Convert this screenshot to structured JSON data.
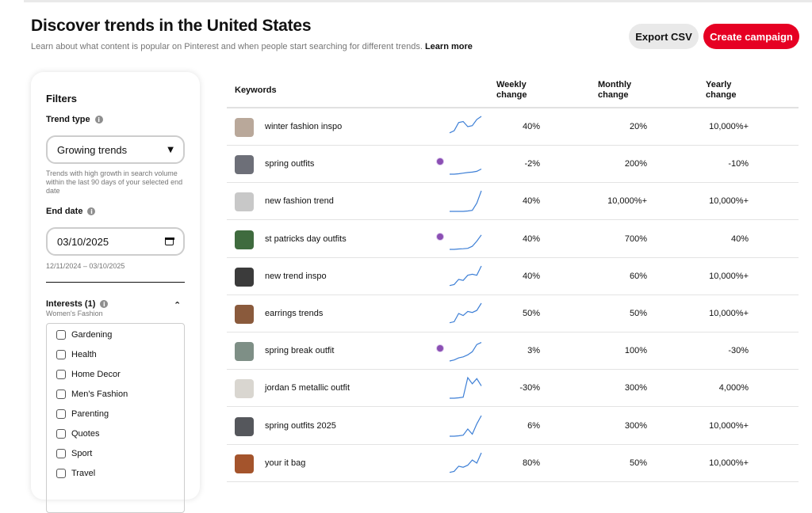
{
  "header": {
    "title": "Discover trends in the United States",
    "subtitle": "Learn about what content is popular on Pinterest and when people start searching for different trends.",
    "learn_more": "Learn more",
    "export_label": "Export CSV",
    "create_label": "Create campaign"
  },
  "filters": {
    "title": "Filters",
    "trend_type_label": "Trend type",
    "trend_type_value": "Growing trends",
    "trend_type_hint": "Trends with high growth in search volume within the last 90 days of your selected end date",
    "end_date_label": "End date",
    "end_date_value": "03/10/2025",
    "date_range": "12/11/2024 – 03/10/2025",
    "interests_label": "Interests (1)",
    "interests_selected": "Women's Fashion",
    "interests": [
      "Gardening",
      "Health",
      "Home Decor",
      "Men's Fashion",
      "Parenting",
      "Quotes",
      "Sport",
      "Travel"
    ]
  },
  "table": {
    "headers": {
      "keywords": "Keywords",
      "weekly": [
        "Weekly",
        "change"
      ],
      "monthly": [
        "Monthly",
        "change"
      ],
      "yearly": [
        "Yearly",
        "change"
      ]
    },
    "rows": [
      {
        "keyword": "winter fashion inspo",
        "weekly": "40%",
        "monthly": "20%",
        "yearly": "10,000%+",
        "badge": false,
        "thumb_color": "#b9a89a",
        "spark": [
          0.2,
          0.3,
          0.7,
          0.75,
          0.5,
          0.55,
          0.85,
          1.0
        ]
      },
      {
        "keyword": "spring outfits",
        "weekly": "-2%",
        "monthly": "200%",
        "yearly": "-10%",
        "badge": true,
        "thumb_color": "#6d6f78",
        "spark": [
          0.0,
          0.0,
          0.02,
          0.05,
          0.08,
          0.1,
          0.14,
          0.25
        ]
      },
      {
        "keyword": "new fashion trend",
        "weekly": "40%",
        "monthly": "10,000%+",
        "yearly": "10,000%+",
        "badge": false,
        "thumb_color": "#c8c8c8",
        "spark": [
          0.0,
          0.0,
          0.0,
          0.0,
          0.02,
          0.05,
          0.4,
          1.0
        ]
      },
      {
        "keyword": "st patricks day outfits",
        "weekly": "40%",
        "monthly": "700%",
        "yearly": "40%",
        "badge": true,
        "thumb_color": "#3f6b3e",
        "spark": [
          0.0,
          0.0,
          0.02,
          0.03,
          0.05,
          0.15,
          0.4,
          0.7
        ]
      },
      {
        "keyword": "new trend inspo",
        "weekly": "40%",
        "monthly": "60%",
        "yearly": "10,000%+",
        "badge": false,
        "thumb_color": "#3b3b3b",
        "spark": [
          0.05,
          0.1,
          0.35,
          0.3,
          0.55,
          0.6,
          0.55,
          1.0
        ]
      },
      {
        "keyword": "earrings trends",
        "weekly": "50%",
        "monthly": "50%",
        "yearly": "10,000%+",
        "badge": false,
        "thumb_color": "#8a5a3c",
        "spark": [
          0.05,
          0.1,
          0.5,
          0.4,
          0.6,
          0.55,
          0.65,
          1.0
        ]
      },
      {
        "keyword": "spring break outfit",
        "weekly": "3%",
        "monthly": "100%",
        "yearly": "-30%",
        "badge": true,
        "thumb_color": "#7e8f86",
        "spark": [
          0.0,
          0.05,
          0.15,
          0.2,
          0.3,
          0.45,
          0.8,
          0.9
        ]
      },
      {
        "keyword": "jordan 5 metallic outfit",
        "weekly": "-30%",
        "monthly": "300%",
        "yearly": "4,000%",
        "badge": false,
        "thumb_color": "#d9d6d0",
        "spark": [
          0.0,
          0.0,
          0.02,
          0.05,
          1.0,
          0.7,
          0.95,
          0.6
        ]
      },
      {
        "keyword": "spring outfits 2025",
        "weekly": "6%",
        "monthly": "300%",
        "yearly": "10,000%+",
        "badge": false,
        "thumb_color": "#55575c",
        "spark": [
          0.0,
          0.0,
          0.02,
          0.05,
          0.35,
          0.1,
          0.6,
          1.0
        ]
      },
      {
        "keyword": "your it bag",
        "weekly": "80%",
        "monthly": "50%",
        "yearly": "10,000%+",
        "badge": false,
        "thumb_color": "#a4542c",
        "spark": [
          0.05,
          0.1,
          0.35,
          0.3,
          0.4,
          0.65,
          0.5,
          1.0
        ]
      }
    ]
  },
  "colors": {
    "accent": "#e60023",
    "sparkline": "#3d7fd6",
    "badge": "#8b4fb3"
  }
}
